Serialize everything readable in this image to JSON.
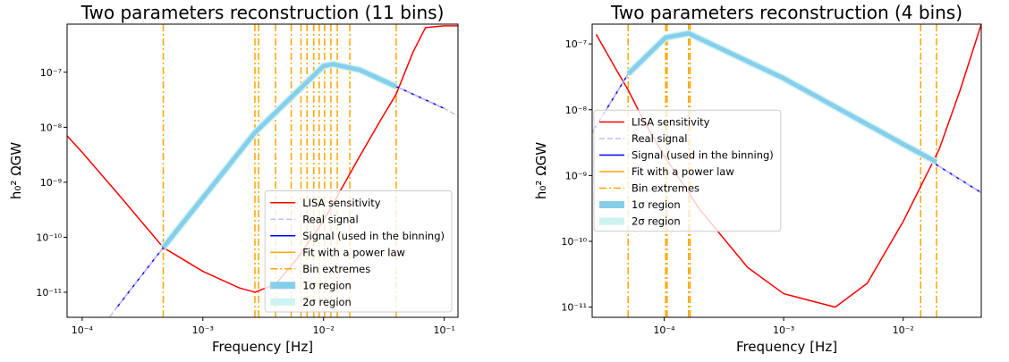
{
  "chart_data": [
    {
      "type": "line",
      "title": "Two parameters reconstruction (11 bins)",
      "xlabel": "Frequency [Hz]",
      "ylabel": "h₀² ΩGW",
      "xscale": "log",
      "yscale": "log",
      "xlim": [
        7.5e-05,
        0.13
      ],
      "ylim": [
        3.5e-12,
        7.5e-07
      ],
      "xticks": [
        {
          "value": 0.0001,
          "label": "10⁻⁴"
        },
        {
          "value": 0.001,
          "label": "10⁻³"
        },
        {
          "value": 0.01,
          "label": "10⁻²"
        },
        {
          "value": 0.1,
          "label": "10⁻¹"
        }
      ],
      "yticks": [
        {
          "value": 1e-11,
          "label": "10⁻¹¹"
        },
        {
          "value": 1e-10,
          "label": "10⁻¹⁰"
        },
        {
          "value": 1e-09,
          "label": "10⁻⁹"
        },
        {
          "value": 1e-08,
          "label": "10⁻⁸"
        },
        {
          "value": 1e-07,
          "label": "10⁻⁷"
        }
      ],
      "legend": "lower right",
      "series": [
        {
          "name": "LISA sensitivity",
          "color": "#ff0000",
          "style": "solid",
          "x": [
            7.5e-05,
            0.0001,
            0.0002,
            0.00047,
            0.001,
            0.002,
            0.0027,
            0.004,
            0.006,
            0.01,
            0.02,
            0.03,
            0.04,
            0.055,
            0.07,
            0.1,
            0.13
          ],
          "values": [
            7e-09,
            3.5e-09,
            6e-10,
            6.5e-11,
            2.4e-11,
            1.2e-11,
            1e-11,
            1.4e-11,
            4e-11,
            2e-10,
            3e-09,
            1.4e-08,
            4e-08,
            2.3e-07,
            6.5e-07,
            7e-07,
            7e-07
          ]
        },
        {
          "name": "Real signal",
          "color": "#c4c0f0",
          "style": "dashed",
          "x": [
            0.00014,
            0.00047,
            0.0027,
            0.01,
            0.012,
            0.02,
            0.04,
            0.1,
            0.13
          ],
          "values": [
            2.1e-12,
            6.5e-11,
            8e-09,
            1.3e-07,
            1.4e-07,
            1.1e-07,
            5.5e-08,
            2.2e-08,
            1.6e-08
          ]
        },
        {
          "name": "Signal (used in the binning)",
          "color": "#0000ff",
          "style": "solid",
          "x": [
            0.00019,
            0.00047,
            0.0027,
            0.01,
            0.012,
            0.02,
            0.04,
            0.1
          ],
          "values": [
            5e-12,
            6.5e-11,
            8e-09,
            1.3e-07,
            1.4e-07,
            1.1e-07,
            5.5e-08,
            2.2e-08
          ]
        },
        {
          "name": "Fit with a power law",
          "color": "#ffa500",
          "style": "solid",
          "x": [
            0.00047,
            0.0027,
            0.01,
            0.012,
            0.02,
            0.04
          ],
          "values": [
            6.5e-11,
            8e-09,
            1.3e-07,
            1.4e-07,
            1.1e-07,
            5.5e-08
          ]
        },
        {
          "name": "Bin extremes",
          "color": "#ffa500",
          "style": "dashdot",
          "x": [
            0.00047,
            0.0027,
            0.0029,
            0.004,
            0.0054,
            0.0065,
            0.0073,
            0.0083,
            0.0092,
            0.0102,
            0.0115,
            0.013,
            0.0165,
            0.04
          ]
        },
        {
          "name": "1σ region",
          "color": "#87ceeb",
          "style": "band",
          "x": [
            0.00047,
            0.0027,
            0.01,
            0.012,
            0.02,
            0.04
          ],
          "values": [
            6.5e-11,
            8e-09,
            1.3e-07,
            1.4e-07,
            1.1e-07,
            5.5e-08
          ]
        },
        {
          "name": "2σ region",
          "color": "#cdf3f3",
          "style": "band",
          "x": [
            0.00047,
            0.0027,
            0.01,
            0.012,
            0.02,
            0.04
          ],
          "values": [
            6.5e-11,
            8e-09,
            1.3e-07,
            1.4e-07,
            1.1e-07,
            5.5e-08
          ]
        }
      ]
    },
    {
      "type": "line",
      "title": "Two parameters reconstruction (4 bins)",
      "xlabel": "Frequency [Hz]",
      "ylabel": "h₀² ΩGW",
      "xscale": "log",
      "yscale": "log",
      "xlim": [
        2.5e-05,
        0.045
      ],
      "ylim": [
        7e-12,
        2e-07
      ],
      "xticks": [
        {
          "value": 0.0001,
          "label": "10⁻⁴"
        },
        {
          "value": 0.001,
          "label": "10⁻³"
        },
        {
          "value": 0.01,
          "label": "10⁻²"
        }
      ],
      "yticks": [
        {
          "value": 1e-11,
          "label": "10⁻¹¹"
        },
        {
          "value": 1e-10,
          "label": "10⁻¹⁰"
        },
        {
          "value": 1e-09,
          "label": "10⁻⁹"
        },
        {
          "value": 1e-08,
          "label": "10⁻⁸"
        },
        {
          "value": 1e-07,
          "label": "10⁻⁷"
        }
      ],
      "legend": "center left",
      "series": [
        {
          "name": "LISA sensitivity",
          "color": "#ff0000",
          "style": "solid",
          "x": [
            2.7e-05,
            4e-05,
            5e-05,
            7e-05,
            0.0001,
            0.0002,
            0.0005,
            0.001,
            0.0027,
            0.005,
            0.01,
            0.02,
            0.03,
            0.045
          ],
          "values": [
            1.4e-07,
            4e-08,
            2e-08,
            6e-09,
            2e-09,
            3e-10,
            4e-11,
            1.6e-11,
            1e-11,
            2.3e-11,
            2e-10,
            2.5e-09,
            2e-08,
            2e-07
          ]
        },
        {
          "name": "Real signal",
          "color": "#c4c0f0",
          "style": "dashed",
          "x": [
            2.5e-05,
            5e-05,
            0.0001,
            0.00016,
            0.001,
            0.01,
            0.045
          ],
          "values": [
            4.5e-09,
            3.5e-08,
            1.2e-07,
            1.4e-07,
            3e-08,
            3e-09,
            5.5e-10
          ]
        },
        {
          "name": "Signal (used in the binning)",
          "color": "#0000ff",
          "style": "solid",
          "x": [
            2.5e-05,
            5e-05,
            0.0001,
            0.00016,
            0.001,
            0.01,
            0.045
          ],
          "values": [
            4.5e-09,
            3.5e-08,
            1.2e-07,
            1.4e-07,
            3e-08,
            3e-09,
            5.5e-10
          ]
        },
        {
          "name": "Fit with a power law",
          "color": "#ffa500",
          "style": "solid",
          "x": [
            5e-05,
            0.000103,
            0.00016,
            0.001,
            0.01,
            0.019
          ],
          "values": [
            3.5e-08,
            1.25e-07,
            1.45e-07,
            3e-08,
            3e-09,
            1.6e-09
          ]
        },
        {
          "name": "Bin extremes",
          "color": "#ffa500",
          "style": "dashdot",
          "x": [
            5e-05,
            0.000103,
            0.000106,
            0.00016,
            0.000165,
            0.014,
            0.019
          ]
        },
        {
          "name": "1σ region",
          "color": "#87ceeb",
          "style": "band",
          "x": [
            5e-05,
            0.000103,
            0.00016,
            0.001,
            0.01,
            0.019
          ],
          "values": [
            3.5e-08,
            1.25e-07,
            1.45e-07,
            3e-08,
            3e-09,
            1.6e-09
          ]
        },
        {
          "name": "2σ region",
          "color": "#cdf3f3",
          "style": "band",
          "x": [
            5e-05,
            0.000103,
            0.00016,
            0.001,
            0.01,
            0.019
          ],
          "values": [
            3.5e-08,
            1.25e-07,
            1.45e-07,
            3e-08,
            3e-09,
            1.6e-09
          ]
        }
      ]
    }
  ]
}
